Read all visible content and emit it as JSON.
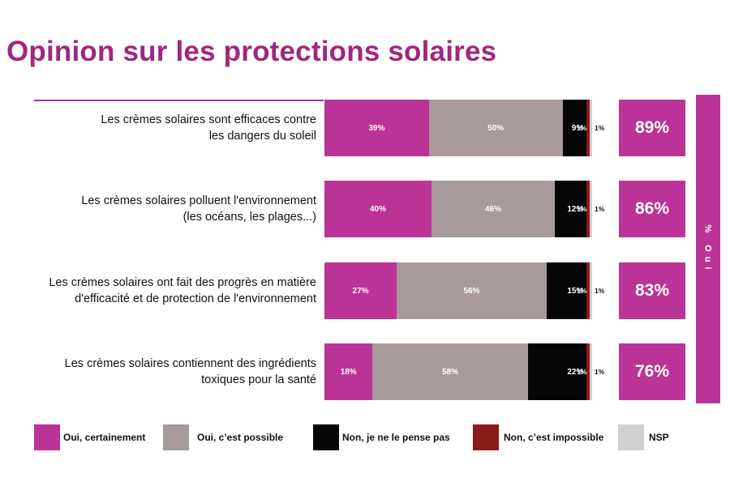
{
  "title": "Opinion sur les protections solaires",
  "side_label": "% Oui",
  "colors": {
    "title": "#a0267e",
    "oui_certainement": "#bb3396",
    "oui_possible": "#a89a9a",
    "non_pense_pas": "#050505",
    "non_impossible": "#8b1a1a",
    "nsp": "#cfcfcf",
    "totals": "#bb3396"
  },
  "chart_data": {
    "type": "bar",
    "orientation": "horizontal",
    "stacked": true,
    "percent": true,
    "categories": [
      [
        "Les crèmes solaires sont efficaces contre",
        "les dangers du soleil"
      ],
      [
        "Les crèmes solaires polluent l'environnement",
        "(les océans, les plages...)"
      ],
      [
        "Les crèmes solaires ont fait des progrès en matière",
        "d'efficacité et de protection de l'environnement"
      ],
      [
        "Les crèmes solaires contiennent des ingrédients",
        "toxiques pour la santé"
      ]
    ],
    "series": [
      {
        "name": "Oui, certainement",
        "values": [
          39,
          40,
          27,
          18
        ]
      },
      {
        "name": "Oui, c’est possible",
        "values": [
          50,
          46,
          56,
          58
        ]
      },
      {
        "name": "Non, je ne le pense pas",
        "values": [
          9,
          12,
          15,
          22
        ]
      },
      {
        "name": "Non, c’est impossible",
        "values": [
          1,
          1,
          1,
          1
        ]
      },
      {
        "name": "NSP",
        "values": [
          1,
          1,
          1,
          1
        ]
      }
    ],
    "value_labels": [
      [
        "39%",
        "50%",
        "9%",
        "1%",
        "1%"
      ],
      [
        "40%",
        "46%",
        "12%",
        "1%",
        "1%"
      ],
      [
        "27%",
        "56%",
        "15%",
        "1%",
        "1%"
      ],
      [
        "18%",
        "58%",
        "22%",
        "1%",
        "1%"
      ]
    ],
    "totals": {
      "name": "% Oui",
      "values": [
        89,
        86,
        83,
        76
      ],
      "labels": [
        "89%",
        "86%",
        "83%",
        "76%"
      ]
    },
    "xlim": [
      0,
      100
    ],
    "legend_position": "bottom"
  },
  "legend": [
    {
      "label": "Oui, certainement"
    },
    {
      "label": "Oui, c’est possible"
    },
    {
      "label": "Non, je ne le pense pas"
    },
    {
      "label": "Non, c’est impossible"
    },
    {
      "label": "NSP"
    }
  ]
}
